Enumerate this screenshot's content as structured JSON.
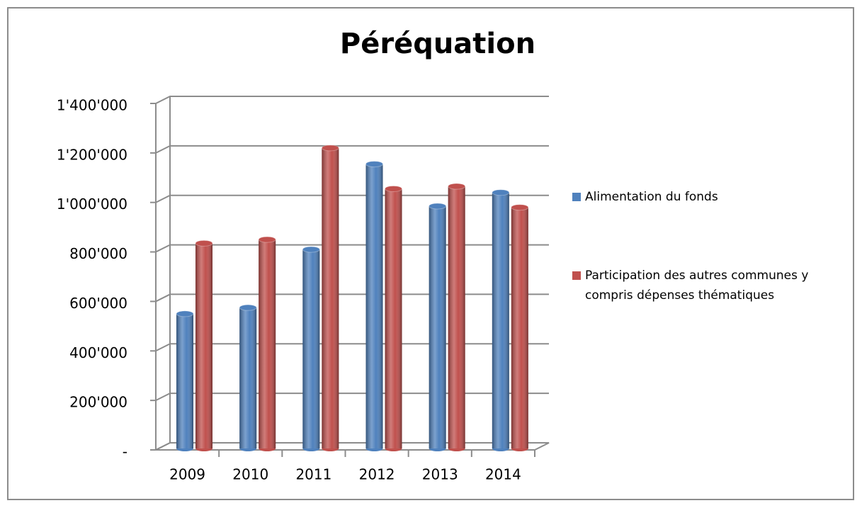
{
  "chart_data": {
    "type": "bar",
    "title": "Péréquation",
    "categories": [
      "2009",
      "2010",
      "2011",
      "2012",
      "2013",
      "2014"
    ],
    "series": [
      {
        "name": "Alimentation du fonds",
        "color": "#4f81bd",
        "values": [
          550000,
          575000,
          810000,
          1155000,
          985000,
          1040000
        ]
      },
      {
        "name": "Participation des autres communes y compris dépenses thématiques",
        "color": "#c0504d",
        "values": [
          835000,
          850000,
          1220000,
          1055000,
          1065000,
          980000
        ]
      }
    ],
    "ylim": [
      0,
      1400000
    ],
    "yticks": [
      {
        "value": 0,
        "label": "-"
      },
      {
        "value": 200000,
        "label": "200'000"
      },
      {
        "value": 400000,
        "label": "400'000"
      },
      {
        "value": 600000,
        "label": "600'000"
      },
      {
        "value": 800000,
        "label": "800'000"
      },
      {
        "value": 1000000,
        "label": "1'000'000"
      },
      {
        "value": 1200000,
        "label": "1'200'000"
      },
      {
        "value": 1400000,
        "label": "1'400'000"
      }
    ],
    "grid": true,
    "legend": "right"
  }
}
